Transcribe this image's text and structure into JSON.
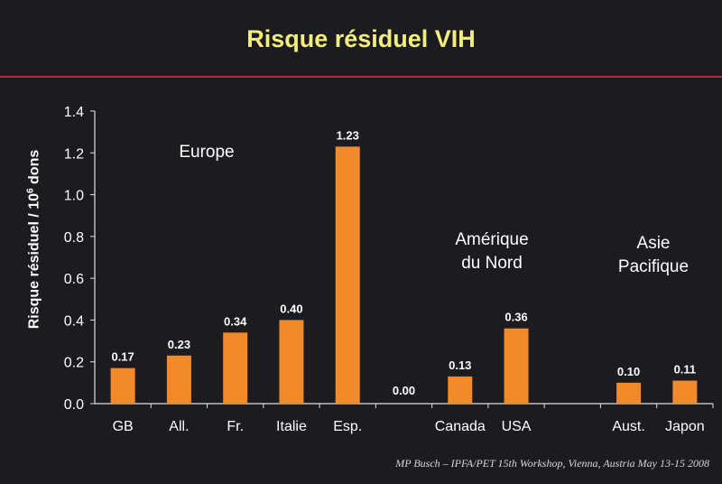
{
  "title": "Risque résiduel VIH",
  "footer": "MP Busch – IPFA/PET 15th Workshop, Vienna, Austria May 13-15 2008",
  "colors": {
    "bar": "#f08a2a",
    "title": "#f3ee7c",
    "rule": "#c0243a",
    "background": "#1c1c20"
  },
  "chart_data": {
    "type": "bar",
    "title": "Risque résiduel VIH",
    "ylabel_main": "Risque résiduel  / 10",
    "ylabel_sup": "6",
    "ylabel_tail": " dons",
    "xlabel": "",
    "ylim": [
      0,
      1.4
    ],
    "yticks": [
      "0.0",
      "0.2",
      "0.4",
      "0.6",
      "0.8",
      "1.0",
      "1.2",
      "1.4"
    ],
    "categories": [
      "GB",
      "All.",
      "Fr.",
      "Italie",
      "Esp.",
      "",
      "Canada",
      "USA",
      "",
      "Aust.",
      "Japon"
    ],
    "values": [
      0.17,
      0.23,
      0.34,
      0.4,
      1.23,
      0.0,
      0.13,
      0.36,
      null,
      0.1,
      0.11
    ],
    "value_labels": [
      "0.17",
      "0.23",
      "0.34",
      "0.40",
      "1.23",
      "0.00",
      "0.13",
      "0.36",
      "",
      "0.10",
      "0.11"
    ],
    "grid": false,
    "annotations": [
      {
        "lines": [
          "Europe"
        ]
      },
      {
        "lines": [
          "Amérique",
          "du Nord"
        ]
      },
      {
        "lines": [
          "Asie",
          "Pacifique"
        ]
      }
    ]
  }
}
